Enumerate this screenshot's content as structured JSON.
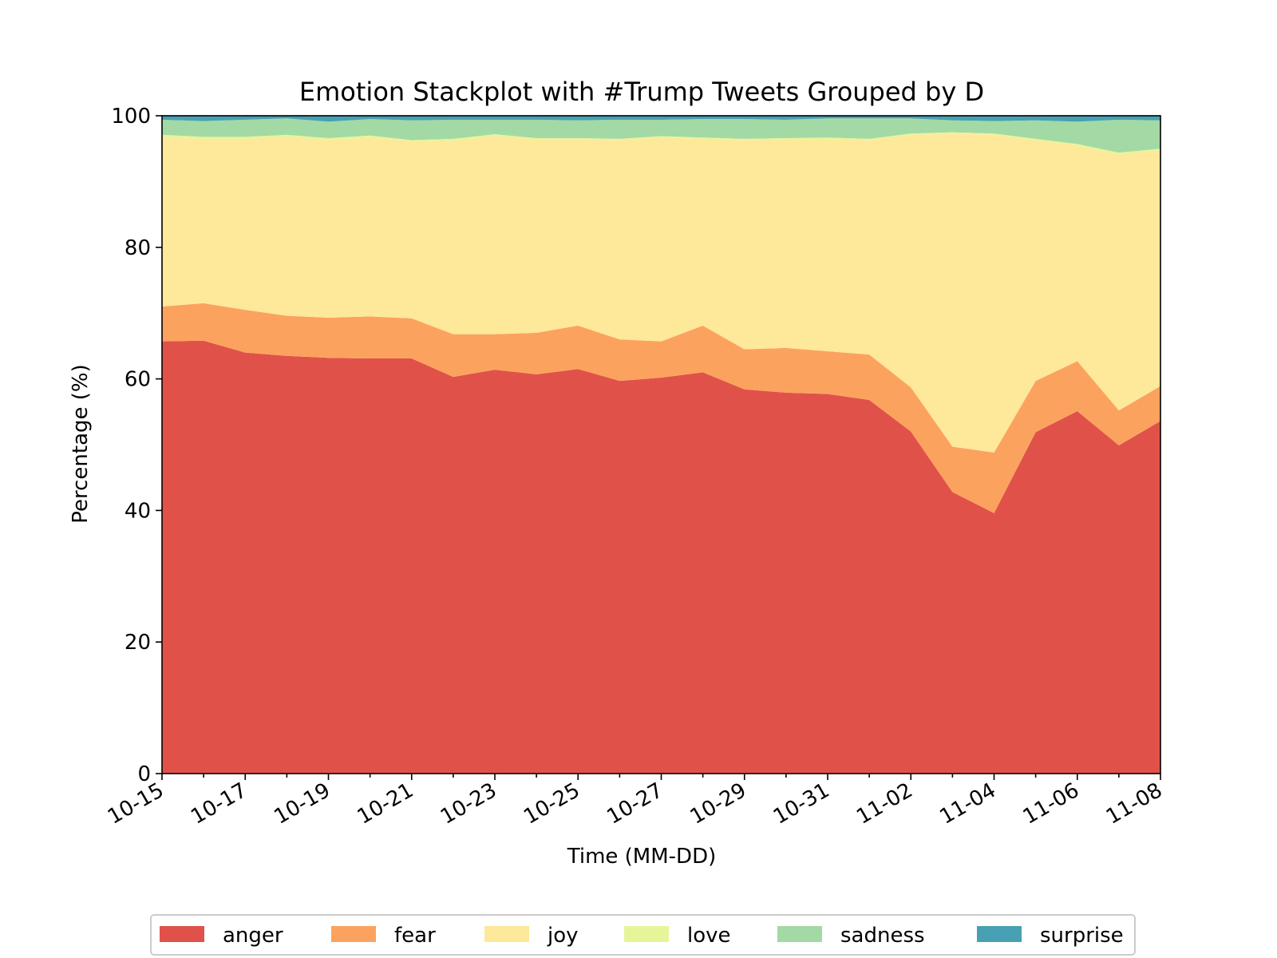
{
  "chart_data": {
    "type": "area",
    "stacked": true,
    "title": "Emotion Stackplot with #Trump Tweets Grouped by D",
    "xlabel": "Time (MM-DD)",
    "ylabel": "Percentage (%)",
    "ylim": [
      0,
      100
    ],
    "yticks": [
      0,
      20,
      40,
      60,
      80,
      100
    ],
    "x": [
      "10-15",
      "10-16",
      "10-17",
      "10-18",
      "10-19",
      "10-20",
      "10-21",
      "10-22",
      "10-23",
      "10-24",
      "10-25",
      "10-26",
      "10-27",
      "10-28",
      "10-29",
      "10-30",
      "10-31",
      "11-01",
      "11-02",
      "11-03",
      "11-04",
      "11-05",
      "11-06",
      "11-07",
      "11-08"
    ],
    "xticks": [
      "10-15",
      "10-17",
      "10-19",
      "10-21",
      "10-23",
      "10-25",
      "10-27",
      "10-29",
      "10-31",
      "11-02",
      "11-04",
      "11-06",
      "11-08"
    ],
    "legend_position": "bottom-center",
    "series": [
      {
        "name": "anger",
        "color": "#e05249",
        "values": [
          65.7,
          65.8,
          64.0,
          63.5,
          63.2,
          63.1,
          63.1,
          60.3,
          61.4,
          60.7,
          61.5,
          59.7,
          60.2,
          61.0,
          58.4,
          57.9,
          57.7,
          56.8,
          52.0,
          42.8,
          39.6,
          51.9,
          55.1,
          49.9,
          53.6
        ]
      },
      {
        "name": "fear",
        "color": "#fba35e",
        "values": [
          5.3,
          5.7,
          6.5,
          6.1,
          6.1,
          6.4,
          6.1,
          6.5,
          5.4,
          6.3,
          6.6,
          6.3,
          5.5,
          7.1,
          6.1,
          6.8,
          6.5,
          6.9,
          6.7,
          6.9,
          9.2,
          7.8,
          7.6,
          5.3,
          5.3
        ]
      },
      {
        "name": "joy",
        "color": "#fee899",
        "values": [
          25.8,
          25.0,
          26.0,
          27.2,
          27.0,
          27.2,
          26.9,
          29.4,
          30.1,
          29.4,
          28.3,
          30.3,
          31.0,
          28.4,
          31.8,
          31.7,
          32.3,
          32.6,
          38.4,
          47.6,
          48.3,
          36.6,
          32.8,
          38.9,
          35.9
        ]
      },
      {
        "name": "love",
        "color": "#e6f598",
        "values": [
          0.3,
          0.3,
          0.3,
          0.3,
          0.3,
          0.3,
          0.2,
          0.3,
          0.3,
          0.2,
          0.2,
          0.2,
          0.2,
          0.2,
          0.2,
          0.2,
          0.2,
          0.2,
          0.2,
          0.2,
          0.2,
          0.2,
          0.2,
          0.3,
          0.2
        ]
      },
      {
        "name": "sadness",
        "color": "#a3d9a4",
        "values": [
          2.3,
          2.4,
          2.6,
          2.5,
          2.5,
          2.5,
          3.0,
          2.9,
          2.2,
          2.8,
          2.7,
          2.9,
          2.5,
          2.8,
          3.0,
          2.8,
          2.9,
          3.1,
          2.3,
          1.8,
          1.9,
          2.8,
          3.4,
          5.0,
          4.3
        ]
      },
      {
        "name": "surprise",
        "color": "#47a0b3",
        "values": [
          0.6,
          0.8,
          0.6,
          0.4,
          0.9,
          0.5,
          0.7,
          0.6,
          0.6,
          0.6,
          0.7,
          0.6,
          0.6,
          0.5,
          0.5,
          0.6,
          0.4,
          0.4,
          0.4,
          0.7,
          0.8,
          0.7,
          0.9,
          0.6,
          0.7
        ]
      }
    ]
  }
}
